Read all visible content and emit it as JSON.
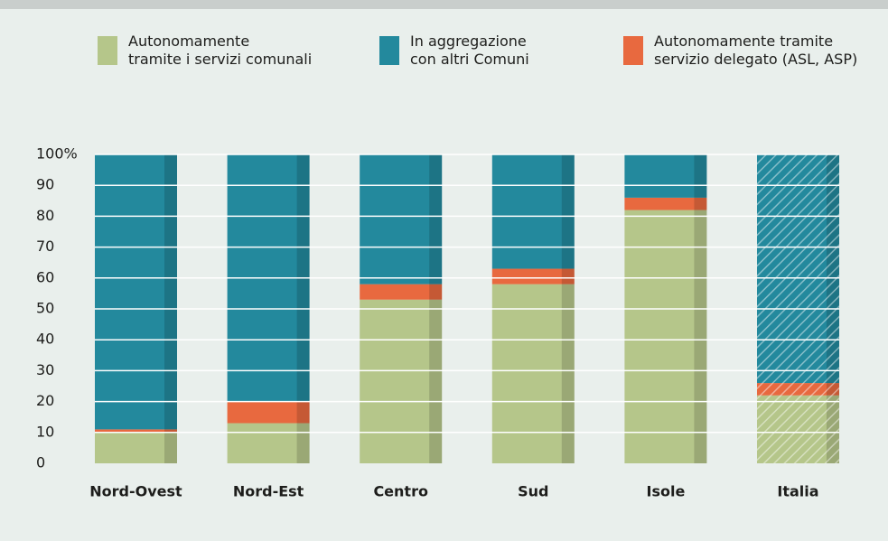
{
  "chart_data": {
    "type": "stacked_bar",
    "categories": [
      "Nord-Ovest",
      "Nord-Est",
      "Centro",
      "Sud",
      "Isole",
      "Italia"
    ],
    "series": [
      {
        "name": "Autonomamente\ntramite i servizi comunali",
        "color": "#b5c68a",
        "values": [
          10,
          13,
          53,
          58,
          82,
          22
        ]
      },
      {
        "name": "Autonomamente tramite\nservizio delegato (ASL, ASP)",
        "color": "#e8693f",
        "values": [
          1,
          7,
          5,
          5,
          4,
          4
        ]
      },
      {
        "name": "In aggregazione\ncon altri Comuni",
        "color": "#23899d",
        "values": [
          89,
          80,
          42,
          37,
          14,
          74
        ]
      }
    ],
    "hatched": [
      false,
      false,
      false,
      false,
      false,
      true
    ],
    "ylim": [
      0,
      100
    ],
    "yticks": [
      0,
      10,
      20,
      30,
      40,
      50,
      60,
      70,
      80,
      90,
      {
        "value": 100,
        "label": "100%"
      }
    ],
    "grid": true
  }
}
